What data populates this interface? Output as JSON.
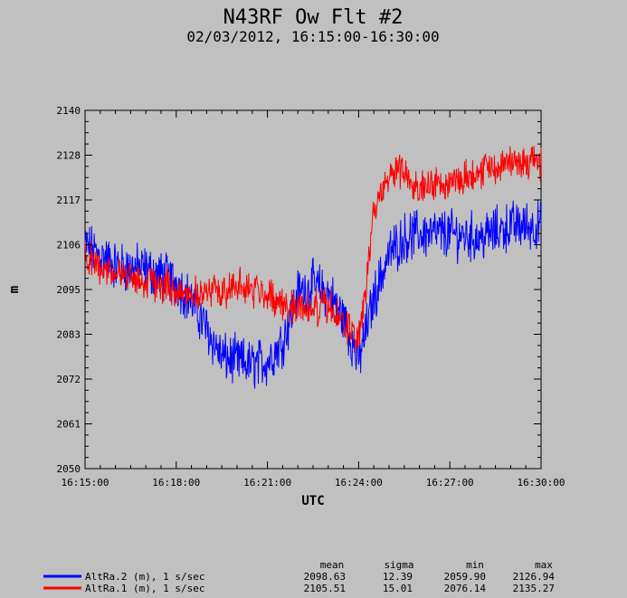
{
  "chart_data": {
    "type": "line",
    "title": "N43RF Ow Flt #2",
    "subtitle": "02/03/2012, 16:15:00-16:30:00",
    "xlabel": "UTC",
    "ylabel": "m",
    "xlim": [
      "16:15:00",
      "16:30:00"
    ],
    "ylim": [
      2050,
      2140
    ],
    "x_ticks": [
      "16:15:00",
      "16:18:00",
      "16:21:00",
      "16:24:00",
      "16:27:00",
      "16:30:00"
    ],
    "y_ticks": [
      "2050",
      "2061",
      "2072",
      "2083",
      "2095",
      "2106",
      "2117",
      "2128",
      "2140"
    ],
    "sample_rate": "1 s/sec",
    "stats_headers": [
      "mean",
      "sigma",
      "min",
      "max"
    ],
    "series": [
      {
        "name": "AltRa.2 (m), 1 s/sec",
        "color": "#0000ff",
        "mean": "2098.63",
        "sigma": "12.39",
        "min": "2059.90",
        "max": "2126.94",
        "x": [
          "16:15:00",
          "16:16:00",
          "16:17:00",
          "16:18:00",
          "16:18:30",
          "16:19:00",
          "16:19:30",
          "16:20:00",
          "16:20:30",
          "16:21:00",
          "16:21:30",
          "16:22:00",
          "16:22:30",
          "16:23:00",
          "16:23:30",
          "16:24:00",
          "16:24:30",
          "16:25:00",
          "16:25:30",
          "16:26:00",
          "16:27:00",
          "16:28:00",
          "16:29:00",
          "16:30:00"
        ],
        "y": [
          2106,
          2101,
          2100,
          2097,
          2092,
          2085,
          2078,
          2077,
          2076,
          2077,
          2082,
          2094,
          2096,
          2094,
          2088,
          2077,
          2093,
          2104,
          2108,
          2109,
          2109,
          2108,
          2111,
          2111
        ]
      },
      {
        "name": "AltRa.1 (m), 1 s/sec",
        "color": "#ff0000",
        "mean": "2105.51",
        "sigma": "15.01",
        "min": "2076.14",
        "max": "2135.27",
        "x": [
          "16:15:00",
          "16:16:00",
          "16:17:00",
          "16:18:00",
          "16:18:30",
          "16:19:00",
          "16:19:30",
          "16:20:00",
          "16:20:30",
          "16:21:00",
          "16:21:30",
          "16:22:00",
          "16:22:30",
          "16:23:00",
          "16:23:30",
          "16:24:00",
          "16:24:15",
          "16:24:30",
          "16:25:00",
          "16:25:30",
          "16:26:00",
          "16:27:00",
          "16:28:00",
          "16:29:00",
          "16:30:00"
        ],
        "y": [
          2103,
          2099,
          2097,
          2095,
          2094,
          2094,
          2095,
          2096,
          2095,
          2094,
          2091,
          2091,
          2090,
          2091,
          2086,
          2083,
          2095,
          2115,
          2124,
          2125,
          2121,
          2122,
          2125,
          2127,
          2127
        ]
      }
    ]
  }
}
